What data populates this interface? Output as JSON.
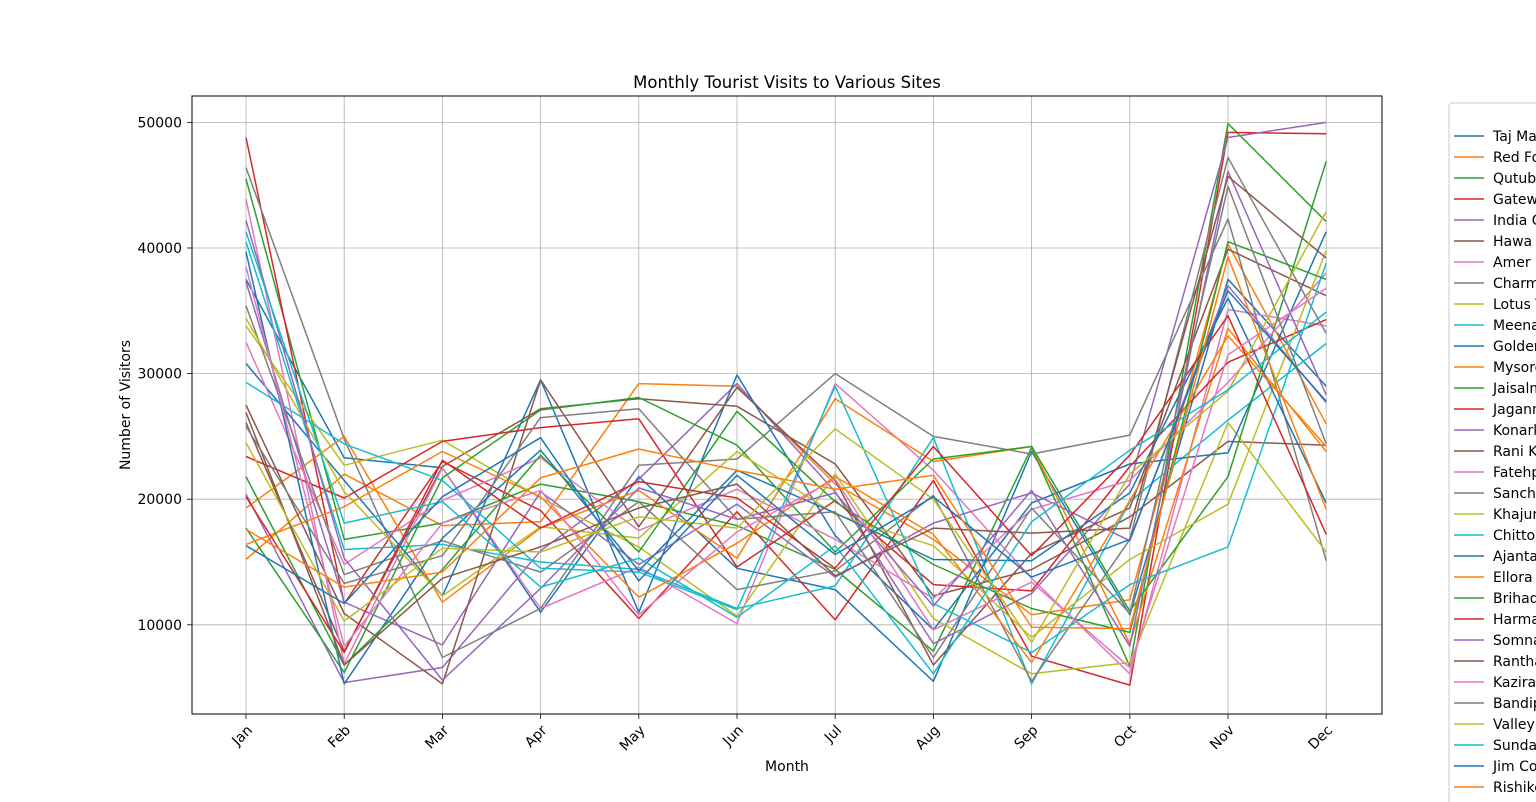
{
  "chart_data": {
    "type": "line",
    "title": "Monthly Tourist Visits to Various Sites",
    "xlabel": "Month",
    "ylabel": "Number of Visitors",
    "categories": [
      "Jan",
      "Feb",
      "Mar",
      "Apr",
      "May",
      "Jun",
      "Jul",
      "Aug",
      "Sep",
      "Oct",
      "Nov",
      "Dec"
    ],
    "ylim": [
      2900,
      52100
    ],
    "yticks": [
      10000,
      20000,
      30000,
      40000,
      50000
    ],
    "grid": true,
    "legend_placement": "right",
    "series": [
      {
        "name": "Taj Ma",
        "color": "#1f77b4",
        "values": [
          37500,
          23300,
          22500,
          11000,
          21800,
          14500,
          12800,
          5500,
          23800,
          10800,
          37500,
          29000
        ]
      },
      {
        "name": "Red Fo",
        "color": "#ff7f0e",
        "values": [
          15200,
          22000,
          17900,
          18200,
          29200,
          29000,
          21200,
          16800,
          10800,
          12000,
          40300,
          26000
        ]
      },
      {
        "name": "Qutub",
        "color": "#2ca02c",
        "values": [
          45500,
          16800,
          18100,
          21200,
          19800,
          17900,
          14400,
          7900,
          24100,
          6700,
          49900,
          42100
        ]
      },
      {
        "name": "Gatew",
        "color": "#d62728",
        "values": [
          48800,
          11700,
          23000,
          19100,
          10500,
          19000,
          10400,
          21500,
          7500,
          5200,
          49200,
          49100
        ]
      },
      {
        "name": "India G",
        "color": "#9467bd",
        "values": [
          20400,
          5400,
          6600,
          15900,
          21600,
          29200,
          20600,
          8500,
          12500,
          21200,
          48800,
          50000
        ]
      },
      {
        "name": "Hawa",
        "color": "#8c564b",
        "values": [
          26100,
          7900,
          22600,
          27200,
          28000,
          27400,
          22800,
          12300,
          14400,
          18600,
          24600,
          24300
        ]
      },
      {
        "name": "Amer",
        "color": "#e377c2",
        "values": [
          43900,
          6900,
          22500,
          11300,
          14600,
          10100,
          29200,
          22300,
          13700,
          6100,
          35100,
          33800
        ]
      },
      {
        "name": "Charm",
        "color": "#7f7f7f",
        "values": [
          46400,
          24800,
          7400,
          11300,
          22700,
          23200,
          30000,
          25000,
          23600,
          25100,
          42300,
          15100
        ]
      },
      {
        "name": "Lotus T",
        "color": "#bcbd22",
        "values": [
          33800,
          22700,
          24700,
          20100,
          16200,
          10700,
          22000,
          10500,
          6100,
          7000,
          26100,
          15800
        ]
      },
      {
        "name": "Meena",
        "color": "#17becf",
        "values": [
          40500,
          16000,
          16400,
          15000,
          14400,
          11300,
          13100,
          24900,
          5300,
          19800,
          26300,
          32400
        ]
      },
      {
        "name": "Golden",
        "color": "#1f77b4",
        "values": [
          30800,
          21500,
          12300,
          29500,
          11000,
          29900,
          17100,
          9600,
          19700,
          22800,
          23700,
          41300
        ]
      },
      {
        "name": "Mysore",
        "color": "#ff7f0e",
        "values": [
          19300,
          25000,
          11800,
          17700,
          20700,
          15300,
          28000,
          23000,
          24200,
          8500,
          33600,
          23800
        ]
      },
      {
        "name": "Jaisalm",
        "color": "#2ca02c",
        "values": [
          17700,
          6200,
          21700,
          27100,
          28100,
          24300,
          15800,
          23200,
          24200,
          11100,
          21800,
          46900
        ]
      },
      {
        "name": "Jagann",
        "color": "#d62728",
        "values": [
          23400,
          20100,
          24600,
          25700,
          26400,
          14600,
          19900,
          13200,
          12700,
          22600,
          30900,
          34300
        ]
      },
      {
        "name": "Konark",
        "color": "#9467bd",
        "values": [
          37300,
          11800,
          8400,
          20600,
          14800,
          19600,
          13800,
          18100,
          20500,
          16700,
          37000,
          27700
        ]
      },
      {
        "name": "Rani K",
        "color": "#8c564b",
        "values": [
          27500,
          10900,
          5300,
          29500,
          17800,
          28900,
          21500,
          6800,
          15700,
          19300,
          39900,
          36200
        ]
      },
      {
        "name": "Fatehp",
        "color": "#e377c2",
        "values": [
          32500,
          14800,
          19900,
          23300,
          17500,
          20800,
          16800,
          12100,
          19200,
          21500,
          29300,
          38000
        ]
      },
      {
        "name": "Sanch",
        "color": "#7f7f7f",
        "values": [
          35400,
          14000,
          16700,
          14200,
          19800,
          12800,
          14300,
          20300,
          5500,
          16800,
          47200,
          33200
        ]
      },
      {
        "name": "Khajur",
        "color": "#bcbd22",
        "values": [
          34400,
          20600,
          12300,
          17800,
          16900,
          23800,
          18800,
          16300,
          9000,
          15200,
          19600,
          39800
        ]
      },
      {
        "name": "Chitto",
        "color": "#17becf",
        "values": [
          29300,
          24400,
          21500,
          14500,
          14200,
          11200,
          29000,
          11700,
          7800,
          13200,
          16200,
          38800
        ]
      },
      {
        "name": "Ajanta",
        "color": "#1f77b4",
        "values": [
          39700,
          5300,
          16900,
          23900,
          14300,
          22300,
          18900,
          15200,
          15100,
          20500,
          36000,
          19700
        ]
      },
      {
        "name": "Ellora",
        "color": "#ff7f0e",
        "values": [
          16400,
          19400,
          23800,
          20200,
          12200,
          16500,
          21800,
          17200,
          7000,
          19900,
          33000,
          24200
        ]
      },
      {
        "name": "Brihad",
        "color": "#2ca02c",
        "values": [
          21800,
          6800,
          14400,
          23500,
          15800,
          27000,
          19800,
          14800,
          11300,
          9400,
          40500,
          37500
        ]
      },
      {
        "name": "Harma",
        "color": "#d62728",
        "values": [
          20200,
          7800,
          23100,
          17700,
          21400,
          20100,
          14500,
          24200,
          15500,
          23500,
          34600,
          17200
        ]
      },
      {
        "name": "Somna",
        "color": "#9467bd",
        "values": [
          42200,
          15300,
          5600,
          12900,
          20900,
          18400,
          20500,
          11500,
          20700,
          8300,
          46100,
          28300
        ]
      },
      {
        "name": "Rantha",
        "color": "#8c564b",
        "values": [
          26900,
          6800,
          13700,
          16200,
          19300,
          21200,
          13900,
          17700,
          17300,
          17700,
          45700,
          39200
        ]
      },
      {
        "name": "Kazira",
        "color": "#e377c2",
        "values": [
          38500,
          8300,
          18100,
          20700,
          10800,
          17400,
          21600,
          9600,
          13400,
          6600,
          31500,
          36800
        ]
      },
      {
        "name": "Bandip",
        "color": "#7f7f7f",
        "values": [
          25800,
          13300,
          15500,
          26500,
          27200,
          18400,
          19000,
          7400,
          19300,
          10900,
          44900,
          24400
        ]
      },
      {
        "name": "Valley",
        "color": "#bcbd22",
        "values": [
          24500,
          10300,
          16100,
          15800,
          18600,
          17700,
          25600,
          20000,
          8600,
          22000,
          28600,
          42900
        ]
      },
      {
        "name": "Sunda",
        "color": "#17becf",
        "values": [
          41300,
          18100,
          19800,
          13000,
          15300,
          10600,
          16300,
          6100,
          18200,
          23900,
          28700,
          34900
        ]
      },
      {
        "name": "Jim Co",
        "color": "#1f77b4",
        "values": [
          16300,
          11700,
          20200,
          24900,
          13500,
          21900,
          15600,
          20200,
          13800,
          16800,
          36600,
          27800
        ]
      },
      {
        "name": "Rishike",
        "color": "#ff7f0e",
        "values": [
          17600,
          13000,
          14200,
          21700,
          24000,
          22300,
          20800,
          21900,
          9800,
          9700,
          39300,
          19200
        ]
      }
    ]
  }
}
